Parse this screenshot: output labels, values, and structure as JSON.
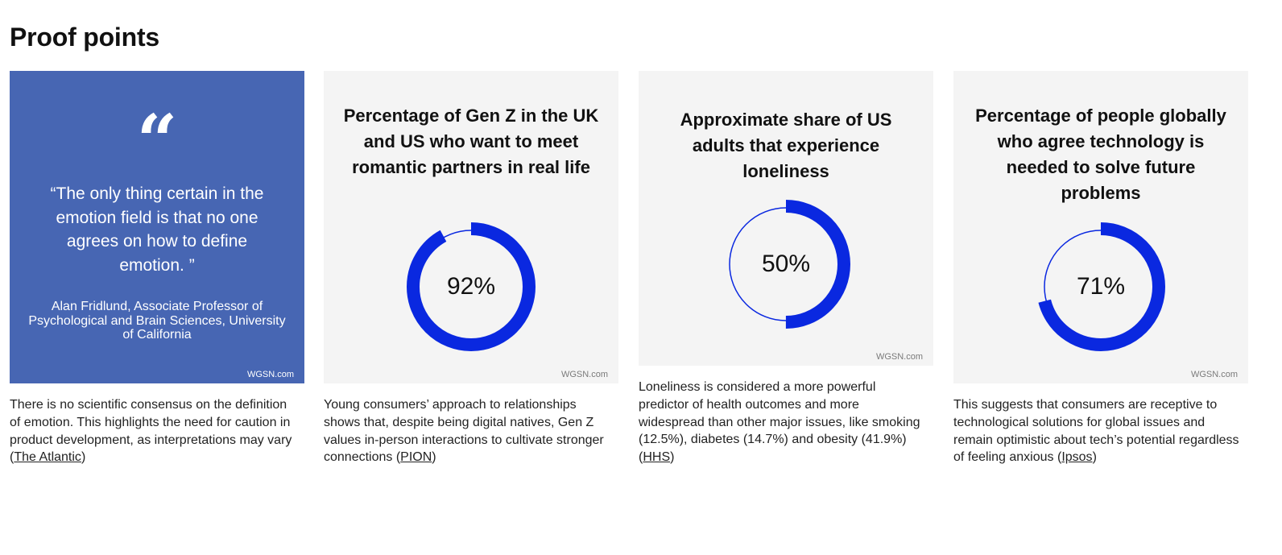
{
  "section_title": "Proof points",
  "watermark": "WGSN.com",
  "colors": {
    "quote_bg": "#4766b3",
    "ring": "#0a28e0",
    "panel_bg": "#f4f4f4"
  },
  "quote_card": {
    "quote_mark": "“",
    "quote": "“The only thing certain in the emotion field is that no one agrees on how to define emotion. ”",
    "author": "Alan Fridlund, Associate Professor of Psychological and Brain Sciences, University of California",
    "caption_text": "There is no scientific consensus on the definition of emotion. This highlights the need for caution in product development, as interpretations may vary (",
    "source": "The Atlantic",
    "caption_end": ")"
  },
  "stats": [
    {
      "title": "Percentage of Gen Z in the UK and US who want to meet romantic partners in real life",
      "value_label": "92%",
      "value": 92,
      "caption_text": "Young consumers’ approach to relationships shows that, despite being digital natives, Gen Z values in-person interactions to cultivate stronger connections (",
      "source": "PION",
      "caption_end": ")"
    },
    {
      "title": "Approximate share of US adults that experience loneliness",
      "value_label": "50%",
      "value": 50,
      "caption_text": "Loneliness is considered a more powerful predictor of health outcomes and more widespread than other major issues, like smoking (12.5%), diabetes (14.7%) and obesity (41.9%) (",
      "source": "HHS",
      "caption_end": ")"
    },
    {
      "title": "Percentage of people globally who agree technology is needed to solve future problems",
      "value_label": "71%",
      "value": 71,
      "caption_text": "This suggests that consumers are receptive to technological solutions for global issues and remain optimistic about tech’s potential regardless of feeling anxious (",
      "source": "Ipsos",
      "caption_end": ")"
    }
  ]
}
